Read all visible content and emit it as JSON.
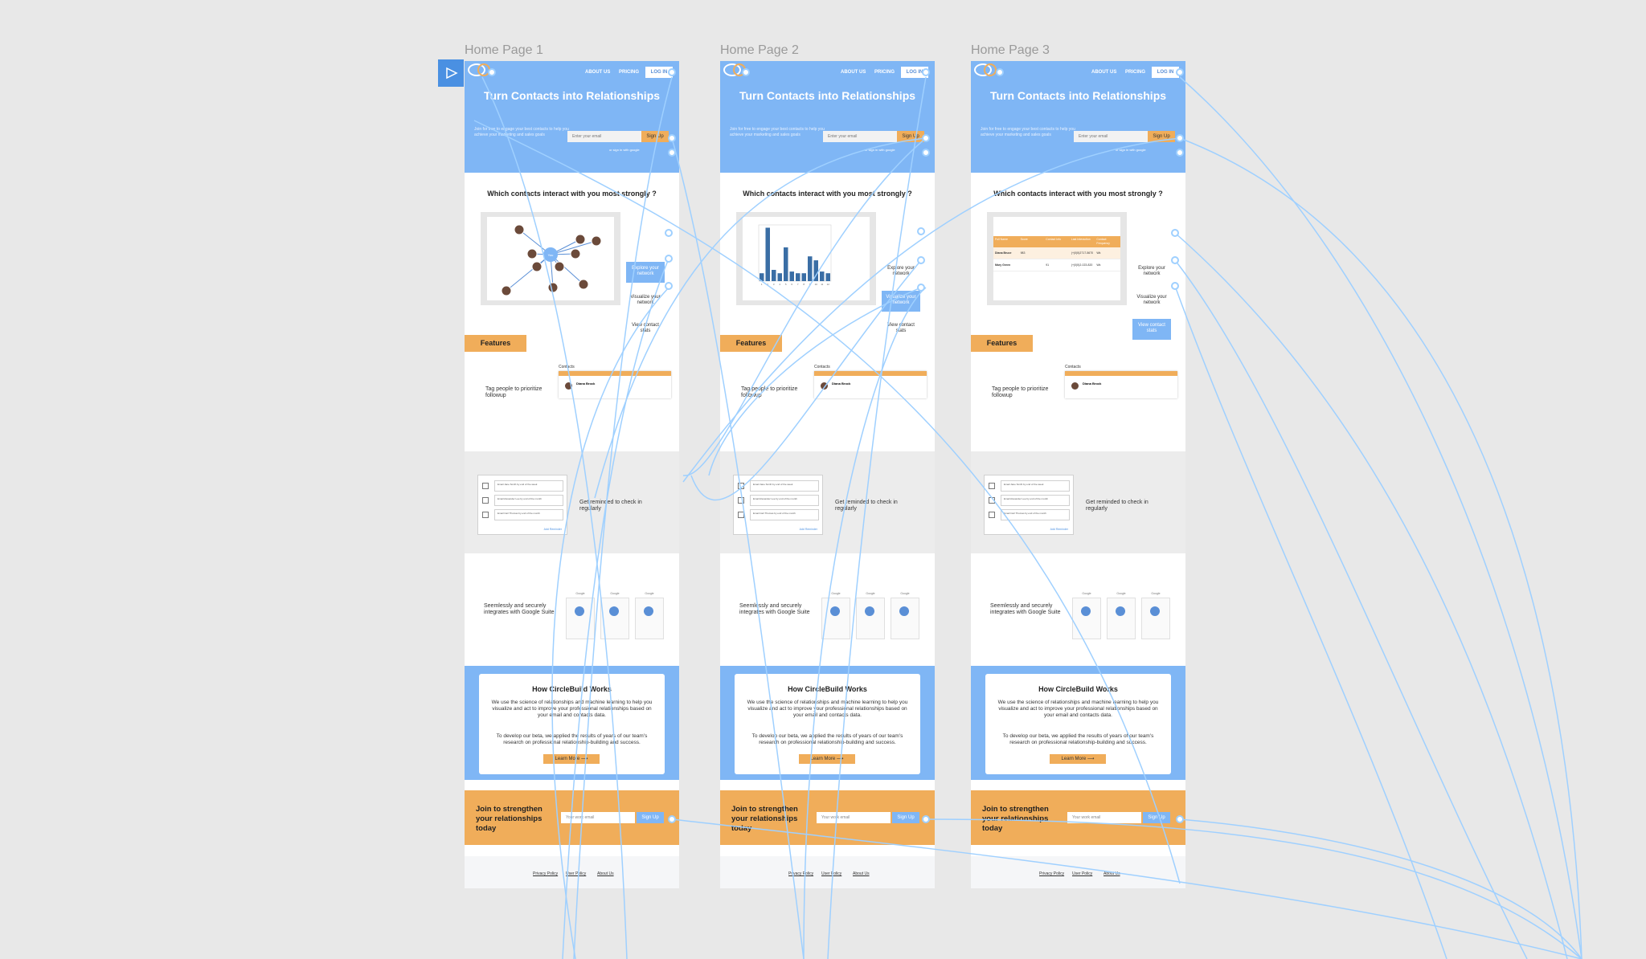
{
  "frames": [
    {
      "label": "Home Page 1",
      "active_option": 0,
      "viz": "network"
    },
    {
      "label": "Home Page 2",
      "active_option": 1,
      "viz": "chart"
    },
    {
      "label": "Home Page 3",
      "active_option": 2,
      "viz": "table"
    }
  ],
  "page": {
    "nav": {
      "about": "ABOUT US",
      "pricing": "PRICING",
      "login": "LOG IN"
    },
    "hero": {
      "title": "Turn Contacts into Relationships",
      "text": "Join for free to engage your best contacts to help you achieve your marketing and sales goals",
      "email_placeholder": "Enter your email",
      "signup": "Sign Up",
      "note": "or sign in with google"
    },
    "question": "Which contacts interact with you most strongly ?",
    "options": [
      "Explore your network",
      "Visualize your network",
      "View contact stats"
    ],
    "network_center": "You",
    "table": {
      "headers": [
        "Full Name",
        "Score",
        "Contact Info",
        "Last Interaction",
        "Contact Frequency"
      ],
      "rows": [
        [
          "Diana Bruce",
          "983",
          "",
          "(+(0)5)2717-5670",
          "Wk"
        ],
        [
          "Mary Green",
          "",
          "91",
          "(+(0)5)2-023-820",
          "Wk"
        ]
      ]
    },
    "features": "Features",
    "tag_text": "Tag people to prioritize followup",
    "contacts_label": "Contacts",
    "contact_name": "Diana Brock",
    "remind_text": "Get reminded to check in regularly",
    "remind_rows": [
      "Email Jane Smith by end of the week",
      "Email Alexander Lee by end of the month",
      "Email Carl Thomas by end of the month"
    ],
    "add_reminder": "Add Reminder",
    "suite_text": "Seemlessly and securely integrates with Google Suite",
    "suite_labels": [
      "Google",
      "Google",
      "Google"
    ],
    "how": {
      "title": "How CircleBuild Works",
      "p1": "We use the science of relationships and machine learning to help you visualize and act to improve your professional relationships based on your email and contacts data.",
      "p2": "To develop our beta, we applied the results of years of our team's research on professional relationship-building and success.",
      "learn": "Learn More ⟶"
    },
    "join": {
      "text": "Join to strengthen your relationships today",
      "placeholder": "Your work email",
      "signup": "Sign Up"
    },
    "footer": [
      "Privacy Policy",
      "User Policy",
      "About Us"
    ]
  },
  "chart_data": {
    "type": "bar",
    "title": "",
    "categories": [
      "1",
      "2",
      "3",
      "4",
      "5",
      "6",
      "7",
      "8",
      "9",
      "10",
      "11",
      "12"
    ],
    "values": [
      14,
      95,
      20,
      14,
      60,
      17,
      14,
      14,
      44,
      37,
      17,
      14
    ],
    "ylim": [
      0,
      100
    ],
    "color": "#3a6ea5"
  },
  "colors": {
    "blue": "#7fb6f5",
    "orange": "#f0ad5a",
    "accent": "#4a90e2",
    "connector": "#9fd0ff"
  }
}
